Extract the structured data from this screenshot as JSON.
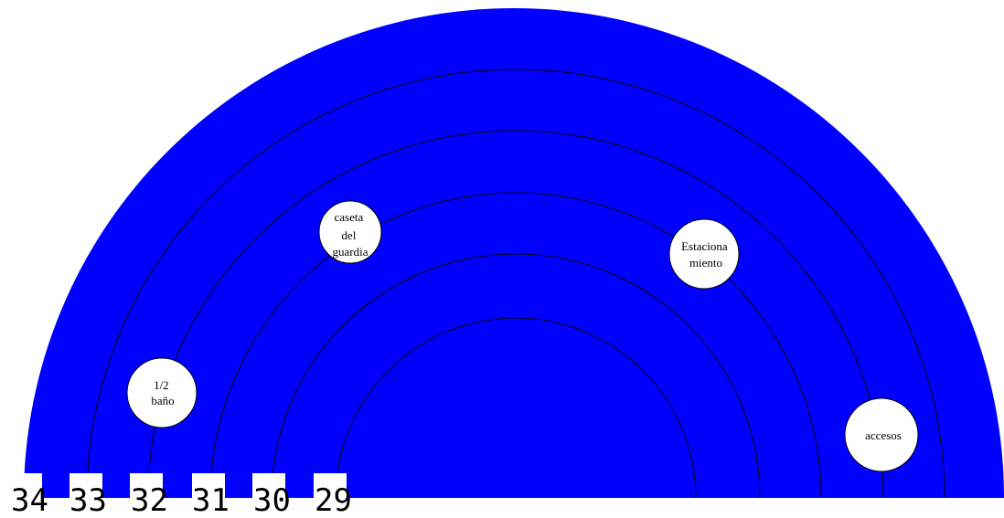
{
  "diagram": {
    "fill_color": "#0000ff",
    "line_color": "#000000",
    "ring_labels": [
      "34",
      "33",
      "32",
      "31",
      "30",
      "29"
    ],
    "nodes": [
      {
        "id": "medio-bano",
        "lines": [
          "1/2",
          "baño"
        ]
      },
      {
        "id": "caseta-del-guardia",
        "lines": [
          "caseta",
          "del",
          "guardia"
        ]
      },
      {
        "id": "estacionamiento",
        "lines": [
          "Estaciona",
          "miento"
        ]
      },
      {
        "id": "accesos",
        "lines": [
          "accesos"
        ]
      }
    ]
  }
}
